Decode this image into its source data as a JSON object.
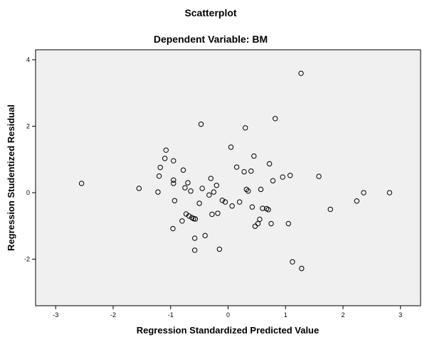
{
  "chart_data": {
    "type": "scatter",
    "title": "Scatterplot",
    "subtitle": "Dependent Variable: BM",
    "xlabel": "Regression Standardized Predicted Value",
    "ylabel": "Regression Studentized Residual",
    "xlim": [
      -3.35,
      3.35
    ],
    "ylim": [
      -3.4,
      4.3
    ],
    "xticks": [
      -3,
      -2,
      -1,
      0,
      1,
      2,
      3
    ],
    "yticks": [
      -2,
      0,
      2,
      4
    ],
    "grid": false,
    "legend": "none",
    "colors": {
      "plot_background": "#f0f0f0",
      "marker_stroke": "#000000",
      "axis": "#000000"
    },
    "series": [
      {
        "x": [
          -2.55,
          -1.55,
          -1.22,
          -1.2,
          -1.18,
          -1.1,
          -1.08,
          -0.95,
          -0.95,
          -0.95,
          -0.93,
          -0.96,
          -0.8,
          -0.78,
          -0.75,
          -0.73,
          -0.7,
          -0.68,
          -0.65,
          -0.63,
          -0.6,
          -0.58,
          -0.58,
          -0.57,
          -0.5,
          -0.47,
          -0.45,
          -0.4,
          -0.33,
          -0.3,
          -0.28,
          -0.25,
          -0.2,
          -0.18,
          -0.15,
          -0.1,
          -0.05,
          0.05,
          0.07,
          0.15,
          0.2,
          0.28,
          0.3,
          0.32,
          0.35,
          0.4,
          0.42,
          0.45,
          0.47,
          0.52,
          0.55,
          0.57,
          0.6,
          0.67,
          0.7,
          0.72,
          0.75,
          0.78,
          0.82,
          0.95,
          1.05,
          1.08,
          1.12,
          1.27,
          1.28,
          1.58,
          1.78,
          2.24,
          2.36,
          2.81
        ],
        "y": [
          0.28,
          0.13,
          0.02,
          0.5,
          0.76,
          1.03,
          1.28,
          0.96,
          0.38,
          0.28,
          -0.24,
          -1.08,
          -0.85,
          0.68,
          0.15,
          -0.64,
          0.3,
          -0.7,
          0.05,
          -0.75,
          -0.78,
          -1.37,
          -1.73,
          -0.79,
          -0.32,
          2.06,
          0.13,
          -1.29,
          -0.07,
          0.43,
          -0.65,
          0.02,
          0.22,
          -0.62,
          -1.7,
          -0.23,
          -0.28,
          1.37,
          -0.4,
          0.77,
          -0.28,
          0.63,
          1.95,
          0.1,
          0.05,
          0.65,
          -0.43,
          1.1,
          -1.01,
          -0.93,
          -0.8,
          0.1,
          -0.47,
          -0.48,
          -0.51,
          0.87,
          -0.93,
          0.36,
          2.23,
          0.47,
          -0.93,
          0.52,
          -2.08,
          3.59,
          -2.28,
          0.49,
          -0.5,
          -0.25,
          0.0,
          0.0
        ]
      }
    ]
  }
}
